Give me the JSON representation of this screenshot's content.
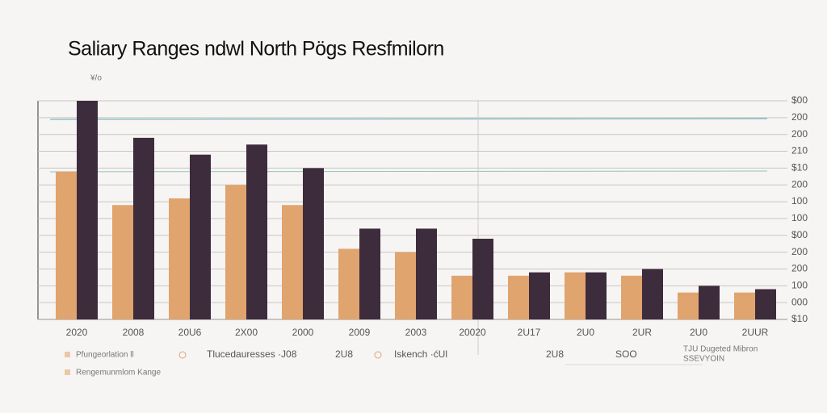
{
  "chart_data": {
    "type": "bar",
    "title": "Saliary Ranges ndwl North Pögs Resfmilorn",
    "y_unit_label": "¥/o",
    "categories": [
      "2020",
      "2008",
      "20U6",
      "2X00",
      "2000",
      "2009",
      "2003",
      "20020",
      "2U17",
      "2U0",
      "2UR",
      "2U0",
      "2UUR"
    ],
    "series": [
      {
        "name": "Pfungeorlation ll",
        "color": "#e0a46e",
        "values": [
          440,
          340,
          360,
          400,
          340,
          210,
          200,
          130,
          130,
          140,
          130,
          80,
          80
        ]
      },
      {
        "name": "Rengemunmlom Kange",
        "color": "#3d2c3c",
        "values": [
          650,
          540,
          490,
          520,
          450,
          270,
          270,
          240,
          140,
          140,
          150,
          100,
          90
        ]
      }
    ],
    "ylim": [
      0,
      650
    ],
    "yticks": [
      {
        "value": 0,
        "label": "$10"
      },
      {
        "value": 50,
        "label": "000"
      },
      100,
      {
        "value": 150,
        "label": "200"
      },
      {
        "value": 200,
        "label": "200"
      },
      {
        "value": 250,
        "label": "$00"
      },
      {
        "value": 300,
        "label": "100"
      },
      {
        "value": 350,
        "label": "100"
      },
      {
        "value": 400,
        "label": "200"
      },
      {
        "value": 450,
        "label": "$10"
      },
      {
        "value": 500,
        "label": "210"
      },
      {
        "value": 550,
        "label": "200"
      },
      {
        "value": 600,
        "label": "200"
      },
      {
        "value": 650,
        "label": "$00"
      }
    ],
    "grid": true,
    "annotations": [
      "Tlucedauresses ·J08",
      "2U8",
      "Iskench ·ćUl",
      "2U8",
      "SOO",
      "TJU Dugeted Mibron",
      "SSEVYOIN"
    ]
  }
}
